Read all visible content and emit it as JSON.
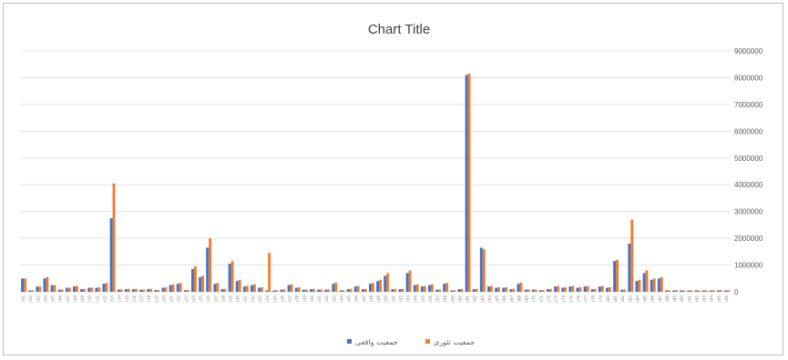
{
  "chart_data": {
    "type": "bar",
    "title": "Chart Title",
    "xlabel": "",
    "ylabel": "",
    "ylim": [
      0,
      9000000
    ],
    "y_ticks": [
      0,
      1000000,
      2000000,
      3000000,
      4000000,
      5000000,
      6000000,
      7000000,
      8000000,
      9000000
    ],
    "y_axis_side": "right",
    "grid": true,
    "legend_position": "bottom",
    "categories": [
      "c01",
      "c02",
      "c03",
      "c04",
      "c05",
      "c06",
      "c07",
      "c08",
      "c09",
      "c10",
      "c11",
      "c12",
      "c13",
      "c14",
      "c15",
      "c16",
      "c17",
      "c18",
      "c19",
      "c20",
      "c21",
      "c22",
      "c23",
      "c24",
      "c25",
      "c26",
      "c27",
      "c28",
      "c29",
      "c30",
      "c31",
      "c32",
      "c33",
      "c34",
      "c35",
      "c36",
      "c37",
      "c38",
      "c39",
      "c40",
      "c41",
      "c42",
      "c43",
      "c44",
      "c45",
      "c46",
      "c47",
      "c48",
      "c49",
      "c50",
      "c51",
      "c52",
      "c53",
      "c54",
      "c55",
      "c56",
      "c57",
      "c58",
      "c59",
      "c60",
      "c61",
      "c62",
      "c63",
      "c64",
      "c65",
      "c66",
      "c67",
      "c68",
      "c69",
      "c70",
      "c71",
      "c72",
      "c73",
      "c74",
      "c75",
      "c76",
      "c77",
      "c78",
      "c79",
      "c80",
      "c81",
      "c82",
      "c83",
      "c84",
      "c85",
      "c86",
      "c87",
      "c88",
      "c89",
      "c90",
      "c91",
      "c92",
      "c93",
      "c94",
      "c95",
      "c96"
    ],
    "series": [
      {
        "name": "جمعیت واقعی",
        "color": "#4472c4",
        "values": [
          500000,
          50000,
          200000,
          500000,
          250000,
          80000,
          150000,
          200000,
          100000,
          150000,
          150000,
          300000,
          2750000,
          80000,
          100000,
          100000,
          80000,
          100000,
          60000,
          150000,
          250000,
          300000,
          60000,
          850000,
          550000,
          1650000,
          300000,
          100000,
          1050000,
          400000,
          200000,
          250000,
          150000,
          50000,
          50000,
          80000,
          250000,
          150000,
          80000,
          100000,
          80000,
          80000,
          300000,
          50000,
          100000,
          200000,
          100000,
          300000,
          400000,
          600000,
          100000,
          100000,
          700000,
          250000,
          200000,
          250000,
          80000,
          300000,
          50000,
          100000,
          8100000,
          100000,
          1650000,
          200000,
          150000,
          150000,
          100000,
          300000,
          80000,
          80000,
          60000,
          100000,
          200000,
          150000,
          200000,
          150000,
          200000,
          100000,
          200000,
          150000,
          1150000,
          80000,
          1800000,
          400000,
          700000,
          450000,
          500000,
          50000,
          50000,
          50000,
          50000,
          50000,
          50000,
          50000,
          50000,
          50000
        ]
      },
      {
        "name": "جمعیت تئوری",
        "color": "#ed7d31",
        "values": [
          500000,
          60000,
          200000,
          550000,
          250000,
          90000,
          160000,
          220000,
          110000,
          160000,
          170000,
          330000,
          4050000,
          90000,
          110000,
          110000,
          90000,
          110000,
          70000,
          170000,
          280000,
          330000,
          70000,
          950000,
          600000,
          2000000,
          330000,
          110000,
          1150000,
          450000,
          220000,
          280000,
          170000,
          1450000,
          60000,
          90000,
          280000,
          170000,
          90000,
          110000,
          90000,
          90000,
          350000,
          60000,
          110000,
          220000,
          110000,
          330000,
          450000,
          700000,
          110000,
          110000,
          800000,
          280000,
          220000,
          280000,
          90000,
          330000,
          60000,
          110000,
          8150000,
          110000,
          1600000,
          220000,
          170000,
          170000,
          110000,
          350000,
          90000,
          90000,
          70000,
          110000,
          220000,
          170000,
          220000,
          170000,
          220000,
          110000,
          220000,
          170000,
          1200000,
          90000,
          2700000,
          450000,
          800000,
          500000,
          550000,
          60000,
          60000,
          60000,
          60000,
          60000,
          60000,
          60000,
          60000,
          60000
        ]
      }
    ]
  }
}
